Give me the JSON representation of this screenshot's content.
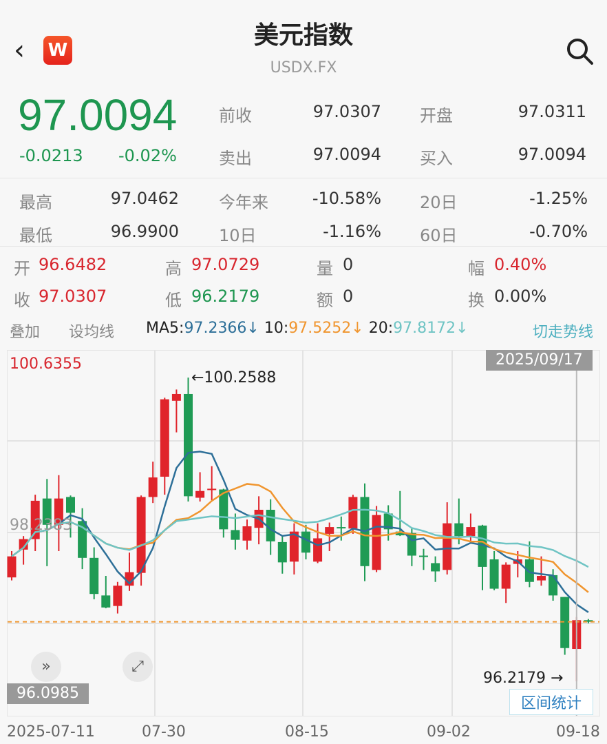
{
  "header": {
    "title": "美元指数",
    "subtitle": "USDX.FX",
    "logo_letter": "W",
    "back_icon": "chevron-left-icon",
    "search_icon": "search-icon"
  },
  "quote": {
    "price": "97.0094",
    "change": "-0.0213",
    "change_pct": "-0.02%",
    "fields": [
      {
        "label": "前收",
        "value": "97.0307"
      },
      {
        "label": "开盘",
        "value": "97.0311"
      },
      {
        "label": "卖出",
        "value": "97.0094"
      },
      {
        "label": "买入",
        "value": "97.0094"
      },
      {
        "label": "最高",
        "value": "97.0462"
      },
      {
        "label": "今年来",
        "value": "-10.58%"
      },
      {
        "label": "20日",
        "value": "-1.25%"
      },
      {
        "label": "最低",
        "value": "96.9900"
      },
      {
        "label": "10日",
        "value": "-1.16%"
      },
      {
        "label": "60日",
        "value": "-0.70%"
      }
    ]
  },
  "day": {
    "open_label": "开",
    "open": "96.6482",
    "high_label": "高",
    "high": "97.0729",
    "vol_label": "量",
    "vol": "0",
    "amp_label": "幅",
    "amp": "0.40%",
    "close_label": "收",
    "close": "97.0307",
    "low_label": "低",
    "low": "96.2179",
    "amt_label": "额",
    "amt": "0",
    "turn_label": "换",
    "turn": "0.00%"
  },
  "toolbar": {
    "overlay": "叠加",
    "set_ma": "设均线",
    "ma5_label": "MA5:",
    "ma5": "97.2366↓",
    "ma10_label": "10:",
    "ma10": "97.5252↓",
    "ma20_label": "20:",
    "ma20": "97.8172↓",
    "switch": "切走势线"
  },
  "colors": {
    "up": "#e0242b",
    "down": "#1f9b55",
    "ma5": "#2d6f98",
    "ma10": "#f0952e",
    "ma20": "#6fc4c4",
    "last": "#f0952e"
  },
  "chart_data": {
    "type": "candlestick",
    "ylim": [
      96.0985,
      100.6355
    ],
    "y_labels": {
      "max": "100.6355",
      "mid": "98.2383",
      "min": "96.0985"
    },
    "selected_date": "2025/09/17",
    "max_annotation": "←100.2588",
    "min_annotation": "96.2179 →",
    "x_ticks": [
      "2025-07-11",
      "07-30",
      "08-15",
      "09-02",
      "09-18"
    ],
    "last_price": 97.0094,
    "range_stats": "区间统计",
    "ohlc": [
      [
        97.6,
        97.88,
        97.95,
        97.56
      ],
      [
        97.97,
        98.11,
        98.15,
        97.77
      ],
      [
        98.11,
        98.62,
        98.7,
        97.95
      ],
      [
        98.65,
        98.3,
        98.91,
        97.75
      ],
      [
        98.3,
        98.65,
        98.96,
        97.95
      ],
      [
        98.67,
        98.46,
        98.69,
        98.13
      ],
      [
        98.35,
        97.86,
        98.52,
        97.71
      ],
      [
        97.86,
        97.38,
        98.0,
        97.31
      ],
      [
        97.36,
        97.2,
        97.62,
        97.19
      ],
      [
        97.22,
        97.49,
        97.54,
        97.12
      ],
      [
        97.49,
        97.67,
        97.93,
        97.42
      ],
      [
        97.66,
        98.67,
        98.69,
        97.49
      ],
      [
        98.67,
        98.93,
        99.14,
        98.59
      ],
      [
        98.94,
        99.97,
        99.99,
        98.7
      ],
      [
        99.95,
        100.04,
        100.1,
        99.53
      ],
      [
        100.04,
        98.68,
        100.2588,
        98.61
      ],
      [
        98.66,
        98.75,
        99.0,
        98.61
      ],
      [
        98.77,
        98.78,
        99.08,
        98.62
      ],
      [
        98.77,
        98.24,
        98.78,
        98.13
      ],
      [
        98.23,
        98.1,
        98.45,
        97.97
      ],
      [
        98.09,
        98.28,
        98.37,
        97.97
      ],
      [
        98.26,
        98.5,
        98.68,
        98.04
      ],
      [
        98.5,
        98.08,
        98.64,
        97.9
      ],
      [
        98.07,
        97.8,
        98.15,
        97.65
      ],
      [
        97.81,
        98.21,
        98.32,
        97.64
      ],
      [
        98.21,
        97.93,
        98.3,
        97.84
      ],
      [
        97.81,
        98.12,
        98.32,
        97.79
      ],
      [
        98.18,
        98.27,
        98.33,
        97.95
      ],
      [
        98.27,
        98.26,
        98.41,
        98.09
      ],
      [
        98.25,
        98.67,
        98.7,
        98.18
      ],
      [
        98.67,
        97.75,
        98.85,
        97.55
      ],
      [
        97.7,
        98.43,
        98.55,
        97.67
      ],
      [
        98.45,
        98.24,
        98.56,
        98.09
      ],
      [
        98.21,
        98.16,
        98.75,
        98.15
      ],
      [
        98.19,
        97.89,
        98.25,
        97.75
      ],
      [
        97.89,
        97.88,
        97.98,
        97.7
      ],
      [
        97.79,
        97.68,
        97.88,
        97.54
      ],
      [
        97.7,
        98.32,
        98.6,
        97.64
      ],
      [
        98.32,
        98.15,
        98.65,
        98.04
      ],
      [
        98.15,
        98.27,
        98.45,
        98.07
      ],
      [
        98.29,
        97.74,
        98.3,
        97.43
      ],
      [
        97.84,
        97.45,
        97.95,
        97.43
      ],
      [
        97.45,
        97.77,
        97.8,
        97.26
      ],
      [
        97.78,
        97.84,
        97.95,
        97.6
      ],
      [
        97.84,
        97.54,
        98.08,
        97.47
      ],
      [
        97.56,
        97.62,
        97.88,
        97.49
      ],
      [
        97.63,
        97.36,
        97.71,
        97.29
      ],
      [
        97.34,
        96.66,
        97.34,
        96.57
      ],
      [
        96.6482,
        97.0307,
        97.0729,
        96.2179
      ],
      [
        97.0311,
        97.0094,
        97.0462,
        96.99
      ]
    ]
  }
}
